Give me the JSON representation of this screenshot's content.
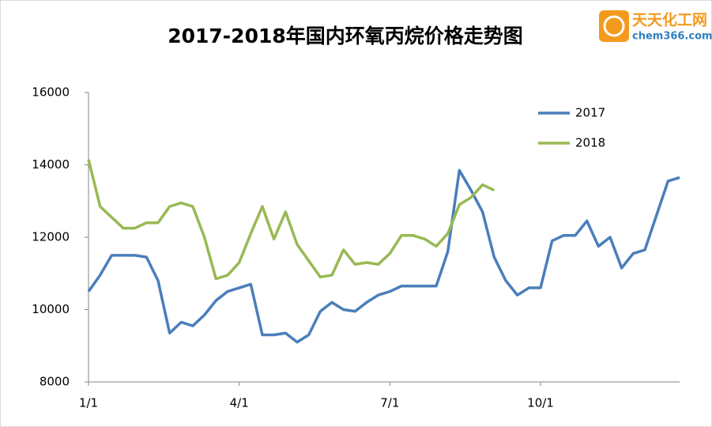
{
  "chart_data": {
    "type": "line",
    "title": "2017-2018年国内环氧丙烷价格走势图",
    "logo": {
      "name": "天天化工网",
      "url": "chem366.com"
    },
    "categories": [
      "1/1",
      null,
      null,
      null,
      null,
      null,
      null,
      null,
      null,
      null,
      null,
      null,
      null,
      "4/1",
      null,
      null,
      null,
      null,
      null,
      null,
      null,
      null,
      null,
      null,
      null,
      null,
      "7/1",
      null,
      null,
      null,
      null,
      null,
      null,
      null,
      null,
      null,
      null,
      null,
      null,
      "10/1",
      null,
      null,
      null,
      null,
      null,
      null,
      null,
      null,
      null,
      null,
      null,
      null
    ],
    "series": [
      {
        "name": "2017",
        "color": "#4a7ebb",
        "values": [
          10500,
          10950,
          11500,
          11500,
          11500,
          11450,
          10800,
          9350,
          9650,
          9550,
          9850,
          10250,
          10500,
          10600,
          10700,
          9300,
          9300,
          9350,
          9100,
          9300,
          9950,
          10200,
          10000,
          9950,
          10200,
          10400,
          10500,
          10650,
          10650,
          10650,
          10650,
          11600,
          13850,
          13300,
          12700,
          11450,
          10800,
          10400,
          10600,
          10600,
          11900,
          12050,
          12050,
          12450,
          11750,
          12000,
          11150,
          11550,
          11650,
          12600,
          13550,
          13650
        ]
      },
      {
        "name": "2018",
        "color": "#98b954",
        "values": [
          14150,
          12850,
          12550,
          12250,
          12250,
          12400,
          12400,
          12850,
          12950,
          12850,
          12000,
          10850,
          10950,
          11300,
          12100,
          12850,
          11950,
          12700,
          11800,
          11350,
          10900,
          10950,
          11650,
          11250,
          11300,
          11250,
          11550,
          12050,
          12050,
          11950,
          11750,
          12100,
          12900,
          13100,
          13450,
          13300,
          null,
          null,
          null,
          null,
          null,
          null,
          null,
          null,
          null,
          null,
          null,
          null,
          null,
          null,
          null,
          null
        ]
      }
    ],
    "ylim": [
      8000,
      16000
    ],
    "yticks": [
      8000,
      10000,
      12000,
      14000,
      16000
    ],
    "grid": false,
    "legend": "upper-right"
  }
}
